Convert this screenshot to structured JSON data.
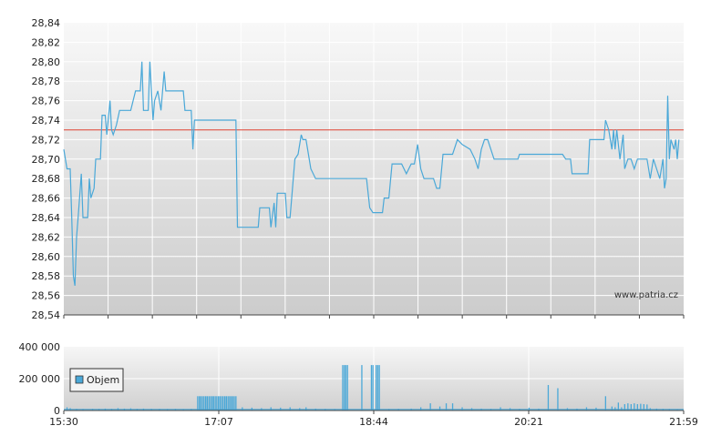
{
  "watermark": "www.patria.cz",
  "colors": {
    "price_line": "#4aa8d8",
    "reference_line": "#e04030",
    "volume_bar": "#4aa8d8",
    "grid": "#ffffff",
    "plot_top": "#f8f8f8",
    "plot_bottom": "#cccccc"
  },
  "chart_data": [
    {
      "type": "line",
      "name": "price",
      "ylim": [
        28.54,
        28.84
      ],
      "y_ticks": [
        "28,84",
        "28,82",
        "28,80",
        "28,78",
        "28,76",
        "28,74",
        "28,72",
        "28,70",
        "28,68",
        "28,66",
        "28,64",
        "28,62",
        "28,60",
        "28,58",
        "28,56",
        "28,54"
      ],
      "xlim": [
        0,
        389
      ],
      "grid": true,
      "reference_line": 28.73,
      "series": [
        {
          "points": [
            [
              0,
              28.71
            ],
            [
              2,
              28.69
            ],
            [
              4,
              28.69
            ],
            [
              5,
              28.64
            ],
            [
              6,
              28.58
            ],
            [
              7,
              28.57
            ],
            [
              8,
              28.62
            ],
            [
              9,
              28.64
            ],
            [
              11,
              28.685
            ],
            [
              12,
              28.64
            ],
            [
              15,
              28.64
            ],
            [
              16,
              28.68
            ],
            [
              17,
              28.66
            ],
            [
              19,
              28.67
            ],
            [
              20,
              28.7
            ],
            [
              23,
              28.7
            ],
            [
              24,
              28.745
            ],
            [
              26,
              28.745
            ],
            [
              27,
              28.725
            ],
            [
              29,
              28.76
            ],
            [
              30,
              28.73
            ],
            [
              31,
              28.725
            ],
            [
              33,
              28.735
            ],
            [
              35,
              28.75
            ],
            [
              42,
              28.75
            ],
            [
              45,
              28.77
            ],
            [
              48,
              28.77
            ],
            [
              49,
              28.8
            ],
            [
              50,
              28.75
            ],
            [
              53,
              28.75
            ],
            [
              54,
              28.8
            ],
            [
              56,
              28.74
            ],
            [
              57,
              28.76
            ],
            [
              59,
              28.77
            ],
            [
              61,
              28.75
            ],
            [
              63,
              28.79
            ],
            [
              64,
              28.77
            ],
            [
              75,
              28.77
            ],
            [
              76,
              28.75
            ],
            [
              80,
              28.75
            ],
            [
              81,
              28.71
            ],
            [
              82,
              28.74
            ],
            [
              108,
              28.74
            ],
            [
              109,
              28.63
            ],
            [
              122,
              28.63
            ],
            [
              123,
              28.65
            ],
            [
              129,
              28.65
            ],
            [
              130,
              28.63
            ],
            [
              132,
              28.655
            ],
            [
              133,
              28.63
            ],
            [
              134,
              28.665
            ],
            [
              139,
              28.665
            ],
            [
              140,
              28.64
            ],
            [
              142,
              28.64
            ],
            [
              143,
              28.66
            ],
            [
              145,
              28.7
            ],
            [
              147,
              28.705
            ],
            [
              149,
              28.725
            ],
            [
              150,
              28.72
            ],
            [
              152,
              28.72
            ],
            [
              155,
              28.69
            ],
            [
              158,
              28.68
            ],
            [
              190,
              28.68
            ],
            [
              192,
              28.65
            ],
            [
              194,
              28.645
            ],
            [
              200,
              28.645
            ],
            [
              201,
              28.66
            ],
            [
              204,
              28.66
            ],
            [
              206,
              28.695
            ],
            [
              212,
              28.695
            ],
            [
              215,
              28.685
            ],
            [
              218,
              28.695
            ],
            [
              220,
              28.695
            ],
            [
              222,
              28.715
            ],
            [
              224,
              28.69
            ],
            [
              226,
              28.68
            ],
            [
              232,
              28.68
            ],
            [
              234,
              28.67
            ],
            [
              236,
              28.67
            ],
            [
              238,
              28.705
            ],
            [
              244,
              28.705
            ],
            [
              247,
              28.72
            ],
            [
              250,
              28.715
            ],
            [
              255,
              28.71
            ],
            [
              258,
              28.7
            ],
            [
              260,
              28.69
            ],
            [
              262,
              28.71
            ],
            [
              264,
              28.72
            ],
            [
              266,
              28.72
            ],
            [
              270,
              28.7
            ],
            [
              285,
              28.7
            ],
            [
              286,
              28.705
            ],
            [
              313,
              28.705
            ],
            [
              315,
              28.7
            ],
            [
              318,
              28.7
            ],
            [
              319,
              28.685
            ],
            [
              329,
              28.685
            ],
            [
              330,
              28.72
            ],
            [
              339,
              28.72
            ],
            [
              340,
              28.74
            ],
            [
              342,
              28.73
            ],
            [
              344,
              28.71
            ],
            [
              345,
              28.73
            ],
            [
              346,
              28.71
            ],
            [
              347,
              28.73
            ],
            [
              349,
              28.7
            ],
            [
              351,
              28.725
            ],
            [
              352,
              28.69
            ],
            [
              354,
              28.7
            ],
            [
              356,
              28.7
            ],
            [
              358,
              28.69
            ],
            [
              360,
              28.7
            ],
            [
              366,
              28.7
            ],
            [
              368,
              28.68
            ],
            [
              370,
              28.7
            ],
            [
              372,
              28.69
            ],
            [
              374,
              28.68
            ],
            [
              376,
              28.7
            ],
            [
              377,
              28.67
            ],
            [
              378,
              28.68
            ],
            [
              379,
              28.765
            ],
            [
              380,
              28.7
            ],
            [
              381,
              28.72
            ],
            [
              383,
              28.71
            ],
            [
              384,
              28.72
            ],
            [
              385,
              28.7
            ],
            [
              386,
              28.72
            ]
          ]
        }
      ]
    },
    {
      "type": "bar",
      "name": "volume",
      "ylim": [
        0,
        400000
      ],
      "y_ticks": [
        "400 000",
        "200 000",
        "0"
      ],
      "x_ticks": [
        "15:30",
        "17:07",
        "18:44",
        "20:21",
        "21:59"
      ],
      "xlim": [
        0,
        389
      ],
      "grid": true,
      "legend": {
        "label": "Objem",
        "placement": "left"
      },
      "series": [
        {
          "name": "Objem",
          "bars": [
            [
              2,
              20000
            ],
            [
              4,
              15000
            ],
            [
              8,
              10000
            ],
            [
              12,
              8000
            ],
            [
              18,
              10000
            ],
            [
              22,
              9000
            ],
            [
              26,
              12000
            ],
            [
              30,
              10000
            ],
            [
              34,
              15000
            ],
            [
              38,
              12000
            ],
            [
              42,
              14000
            ],
            [
              46,
              10000
            ],
            [
              50,
              12000
            ],
            [
              55,
              10000
            ],
            [
              60,
              9000
            ],
            [
              65,
              8000
            ],
            [
              70,
              10000
            ],
            [
              75,
              7000
            ],
            [
              80,
              9000
            ],
            [
              84,
              90000
            ],
            [
              85,
              90000
            ],
            [
              86,
              90000
            ],
            [
              87,
              90000
            ],
            [
              88,
              90000
            ],
            [
              89,
              90000
            ],
            [
              90,
              90000
            ],
            [
              91,
              90000
            ],
            [
              92,
              90000
            ],
            [
              93,
              90000
            ],
            [
              94,
              90000
            ],
            [
              95,
              90000
            ],
            [
              96,
              90000
            ],
            [
              97,
              90000
            ],
            [
              98,
              90000
            ],
            [
              99,
              90000
            ],
            [
              100,
              90000
            ],
            [
              101,
              90000
            ],
            [
              102,
              90000
            ],
            [
              103,
              90000
            ],
            [
              104,
              90000
            ],
            [
              105,
              90000
            ],
            [
              106,
              90000
            ],
            [
              107,
              90000
            ],
            [
              108,
              90000
            ],
            [
              112,
              20000
            ],
            [
              118,
              18000
            ],
            [
              124,
              15000
            ],
            [
              130,
              20000
            ],
            [
              136,
              18000
            ],
            [
              142,
              20000
            ],
            [
              148,
              15000
            ],
            [
              152,
              20000
            ],
            [
              158,
              12000
            ],
            [
              164,
              10000
            ],
            [
              170,
              8000
            ],
            [
              175,
              285000
            ],
            [
              176,
              285000
            ],
            [
              177,
              285000
            ],
            [
              178,
              285000
            ],
            [
              187,
              285000
            ],
            [
              193,
              285000
            ],
            [
              194,
              285000
            ],
            [
              196,
              285000
            ],
            [
              197,
              285000
            ],
            [
              198,
              285000
            ],
            [
              204,
              8000
            ],
            [
              210,
              10000
            ],
            [
              218,
              12000
            ],
            [
              224,
              20000
            ],
            [
              230,
              45000
            ],
            [
              236,
              25000
            ],
            [
              240,
              45000
            ],
            [
              244,
              45000
            ],
            [
              250,
              20000
            ],
            [
              256,
              15000
            ],
            [
              262,
              12000
            ],
            [
              268,
              10000
            ],
            [
              274,
              20000
            ],
            [
              280,
              15000
            ],
            [
              286,
              10000
            ],
            [
              292,
              18000
            ],
            [
              298,
              12000
            ],
            [
              304,
              160000
            ],
            [
              310,
              140000
            ],
            [
              316,
              15000
            ],
            [
              322,
              12000
            ],
            [
              328,
              20000
            ],
            [
              334,
              18000
            ],
            [
              340,
              90000
            ],
            [
              344,
              25000
            ],
            [
              346,
              20000
            ],
            [
              348,
              50000
            ],
            [
              350,
              20000
            ],
            [
              352,
              40000
            ],
            [
              354,
              45000
            ],
            [
              356,
              40000
            ],
            [
              358,
              45000
            ],
            [
              360,
              40000
            ],
            [
              362,
              42000
            ],
            [
              364,
              40000
            ],
            [
              366,
              38000
            ],
            [
              368,
              15000
            ],
            [
              372,
              12000
            ],
            [
              376,
              10000
            ],
            [
              380,
              8000
            ],
            [
              385,
              6000
            ]
          ]
        }
      ]
    }
  ]
}
